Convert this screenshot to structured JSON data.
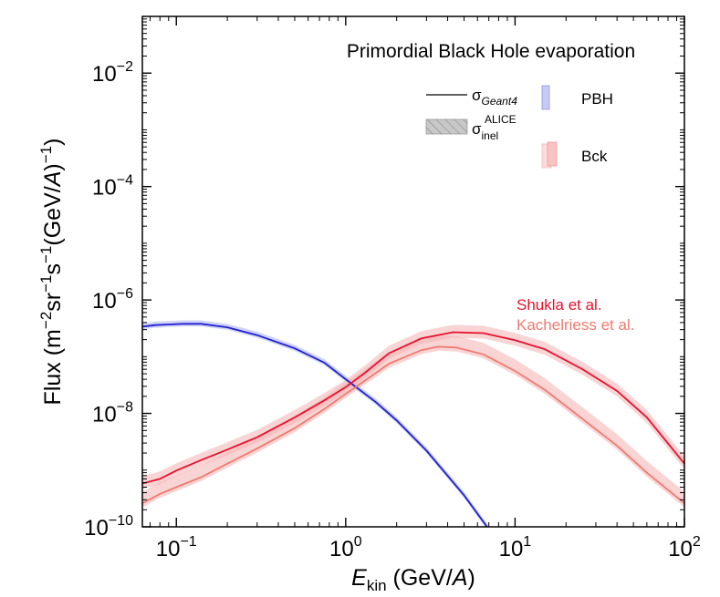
{
  "chart_data": {
    "type": "line",
    "title": "Primordial Black Hole evaporation",
    "xlabel": {
      "main": "E",
      "sub": "kin",
      "unit_open": " (GeV/",
      "unit_var": "A",
      "unit_close": ")"
    },
    "ylabel": "Flux (m^{-2}sr^{-1}s^{-1}(GeV/A)^{-1})",
    "x_scale": "log",
    "y_scale": "log",
    "xlim": [
      0.063,
      100
    ],
    "ylim": [
      1e-10,
      0.1
    ],
    "x_ticks": [
      {
        "value": 0.1,
        "base": "10",
        "exp": "−1"
      },
      {
        "value": 1,
        "base": "10",
        "exp": "0"
      },
      {
        "value": 10,
        "base": "10",
        "exp": "1"
      },
      {
        "value": 100,
        "base": "10",
        "exp": "2"
      }
    ],
    "y_ticks": [
      {
        "value": 1e-10,
        "base": "10",
        "exp": "−10"
      },
      {
        "value": 1e-08,
        "base": "10",
        "exp": "−8"
      },
      {
        "value": 1e-06,
        "base": "10",
        "exp": "−6"
      },
      {
        "value": 0.0001,
        "base": "10",
        "exp": "−4"
      },
      {
        "value": 0.01,
        "base": "10",
        "exp": "−2"
      }
    ],
    "legend": {
      "line_label": {
        "main": "σ",
        "sub": "Geant4"
      },
      "band_label": {
        "main": "σ",
        "sub": "inel",
        "sup": "ALICE"
      },
      "pbh_label": "PBH",
      "bck_label": "Bck",
      "placement": "top-right"
    },
    "annotations": [
      {
        "text": "Shukla et al.",
        "color": "#e8112d"
      },
      {
        "text": "Kachelriess et al.",
        "color": "#f07a70"
      }
    ],
    "colors": {
      "pbh": "#1f1fd0",
      "pbh_band": "#a8b0f0",
      "shukla": "#e8112d",
      "kachelriess": "#f07a70",
      "bck_band": "#f4b0b0"
    },
    "series": [
      {
        "key": "pbh",
        "x": [
          0.063,
          0.075,
          0.09,
          0.11,
          0.14,
          0.2,
          0.3,
          0.5,
          0.75,
          1.0,
          1.5,
          2.0,
          3.0,
          5.0,
          7.0,
          9.5
        ],
        "y": [
          3.4e-07,
          3.6e-07,
          3.7e-07,
          3.8e-07,
          3.8e-07,
          3.3e-07,
          2.4e-07,
          1.4e-07,
          7.8e-08,
          4e-08,
          1.6e-08,
          7.5e-09,
          2.2e-09,
          3.6e-10,
          9e-11,
          1.8e-11
        ],
        "band_upper_factor": 1.15,
        "band_lower_factor": 0.9
      },
      {
        "key": "shukla",
        "name": "Shukla et al.",
        "x": [
          0.063,
          0.08,
          0.1,
          0.14,
          0.2,
          0.3,
          0.5,
          0.75,
          1.0,
          1.3,
          1.8,
          2.8,
          4.3,
          6.5,
          10,
          15,
          25,
          40,
          60,
          100
        ],
        "y": [
          5.8e-10,
          7e-10,
          9.8e-10,
          1.5e-09,
          2.3e-09,
          3.8e-09,
          8.5e-09,
          1.7e-08,
          2.9e-08,
          5.2e-08,
          1.15e-07,
          2.1e-07,
          2.7e-07,
          2.6e-07,
          1.95e-07,
          1.35e-07,
          6e-08,
          2.5e-08,
          8.5e-09,
          1.3e-09
        ],
        "band_upper_factor": 1.35,
        "band_lower_factor": 0.8
      },
      {
        "key": "kachelriess",
        "name": "Kachelriess et al.",
        "x": [
          0.063,
          0.08,
          0.1,
          0.14,
          0.2,
          0.3,
          0.5,
          0.75,
          1.0,
          1.3,
          1.8,
          2.8,
          3.5,
          4.5,
          6.5,
          10,
          15,
          25,
          40,
          60,
          100
        ],
        "y": [
          2.6e-10,
          3.8e-10,
          5e-10,
          7.5e-10,
          1.3e-09,
          2.4e-09,
          5.5e-09,
          1.2e-08,
          2.2e-08,
          3.8e-08,
          7.5e-08,
          1.3e-07,
          1.5e-07,
          1.45e-07,
          1.1e-07,
          5.6e-08,
          2.6e-08,
          8e-09,
          2.7e-09,
          9e-10,
          2.6e-10
        ],
        "band_upper_factor": 1.6,
        "band_lower_factor": 0.85
      }
    ]
  }
}
